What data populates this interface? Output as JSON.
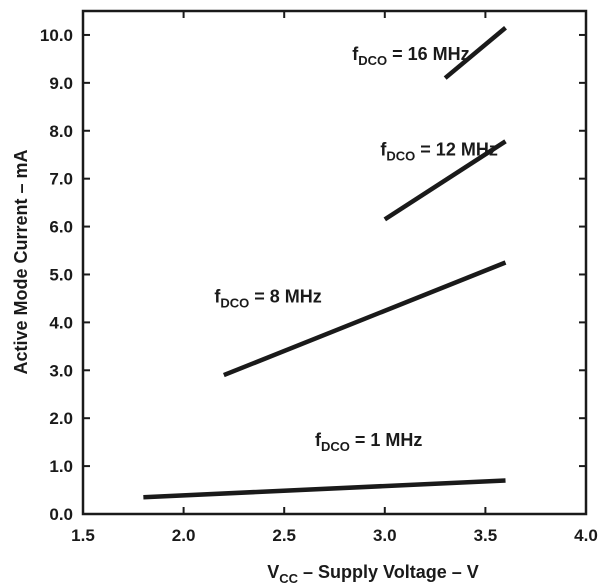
{
  "chart_data": {
    "type": "line",
    "title": "",
    "xlabel": {
      "main": "V",
      "sub": "CC",
      "rest": " – Supply Voltage – V"
    },
    "ylabel": "Active Mode Current – mA",
    "xlim": [
      1.5,
      4.0
    ],
    "ylim": [
      0.0,
      10.5
    ],
    "xticks": [
      "1.5",
      "2.0",
      "2.5",
      "3.0",
      "3.5",
      "4.0"
    ],
    "yticks": [
      "0.0",
      "1.0",
      "2.0",
      "3.0",
      "4.0",
      "5.0",
      "6.0",
      "7.0",
      "8.0",
      "9.0",
      "10.0"
    ],
    "grid": false,
    "series": [
      {
        "name": {
          "main": "f",
          "sub": "DCO",
          "rest": " = 1 MHz"
        },
        "x": [
          1.8,
          3.6
        ],
        "y": [
          0.35,
          0.7
        ],
        "label_at": [
          2.92,
          1.42
        ]
      },
      {
        "name": {
          "main": "f",
          "sub": "DCO",
          "rest": " = 8 MHz"
        },
        "x": [
          2.2,
          3.6
        ],
        "y": [
          2.9,
          5.25
        ],
        "label_at": [
          2.42,
          4.42
        ]
      },
      {
        "name": {
          "main": "f",
          "sub": "DCO",
          "rest": " = 12 MHz"
        },
        "x": [
          3.0,
          3.6
        ],
        "y": [
          6.15,
          7.78
        ],
        "label_at": [
          3.27,
          7.48
        ]
      },
      {
        "name": {
          "main": "f",
          "sub": "DCO",
          "rest": " = 16 MHz"
        },
        "x": [
          3.3,
          3.6
        ],
        "y": [
          9.1,
          10.15
        ],
        "label_at": [
          3.13,
          9.48
        ]
      }
    ]
  }
}
